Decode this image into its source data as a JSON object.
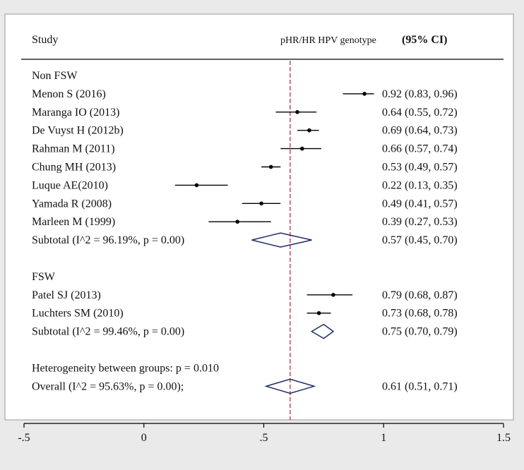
{
  "chart_data": {
    "type": "forest",
    "header": {
      "study_label": "Study",
      "effect_label": "pHR/HR HPV genotype",
      "ci_label": "(95% CI)"
    },
    "x_axis": {
      "range": [
        -0.5,
        1.5
      ],
      "ticks": [
        -0.5,
        0,
        0.5,
        1,
        1.5
      ],
      "tick_labels": [
        "-.5",
        "0",
        ".5",
        "1",
        "1.5"
      ]
    },
    "reference_line": 0.61,
    "rows": [
      {
        "kind": "group",
        "label": "Non FSW"
      },
      {
        "kind": "study",
        "label": "Menon S (2016)",
        "est": 0.92,
        "lo": 0.83,
        "hi": 0.96,
        "ci_text": "0.92 (0.83, 0.96)"
      },
      {
        "kind": "study",
        "label": "Maranga IO (2013)",
        "est": 0.64,
        "lo": 0.55,
        "hi": 0.72,
        "ci_text": "0.64 (0.55, 0.72)"
      },
      {
        "kind": "study",
        "label": "De Vuyst H (2012b)",
        "est": 0.69,
        "lo": 0.64,
        "hi": 0.73,
        "ci_text": "0.69 (0.64, 0.73)"
      },
      {
        "kind": "study",
        "label": "Rahman M (2011)",
        "est": 0.66,
        "lo": 0.57,
        "hi": 0.74,
        "ci_text": "0.66 (0.57, 0.74)"
      },
      {
        "kind": "study",
        "label": "Chung MH (2013)",
        "est": 0.53,
        "lo": 0.49,
        "hi": 0.57,
        "ci_text": "0.53 (0.49, 0.57)"
      },
      {
        "kind": "study",
        "label": "Luque AE(2010)",
        "est": 0.22,
        "lo": 0.13,
        "hi": 0.35,
        "ci_text": "0.22 (0.13, 0.35)"
      },
      {
        "kind": "study",
        "label": "Yamada R (2008)",
        "est": 0.49,
        "lo": 0.41,
        "hi": 0.57,
        "ci_text": "0.49 (0.41, 0.57)"
      },
      {
        "kind": "study",
        "label": "Marleen M (1999)",
        "est": 0.39,
        "lo": 0.27,
        "hi": 0.53,
        "ci_text": "0.39 (0.27, 0.53)"
      },
      {
        "kind": "subtotal",
        "label": "Subtotal  (I^2 = 96.19%, p = 0.00)",
        "est": 0.57,
        "lo": 0.45,
        "hi": 0.7,
        "ci_text": "0.57 (0.45, 0.70)"
      },
      {
        "kind": "blank"
      },
      {
        "kind": "group",
        "label": "FSW"
      },
      {
        "kind": "study",
        "label": "Patel SJ (2013)",
        "est": 0.79,
        "lo": 0.68,
        "hi": 0.87,
        "ci_text": "0.79 (0.68, 0.87)"
      },
      {
        "kind": "study",
        "label": "Luchters SM (2010)",
        "est": 0.73,
        "lo": 0.68,
        "hi": 0.78,
        "ci_text": "0.73 (0.68, 0.78)"
      },
      {
        "kind": "subtotal",
        "label": "Subtotal  (I^2 = 99.46%, p = 0.00)",
        "est": 0.75,
        "lo": 0.7,
        "hi": 0.79,
        "ci_text": "0.75 (0.70, 0.79)"
      },
      {
        "kind": "blank"
      },
      {
        "kind": "note",
        "label": "Heterogeneity between groups: p = 0.010"
      },
      {
        "kind": "overall",
        "label": "Overall  (I^2 = 95.63%, p = 0.00);",
        "est": 0.61,
        "lo": 0.51,
        "hi": 0.71,
        "ci_text": "0.61 (0.51, 0.71)"
      }
    ]
  }
}
